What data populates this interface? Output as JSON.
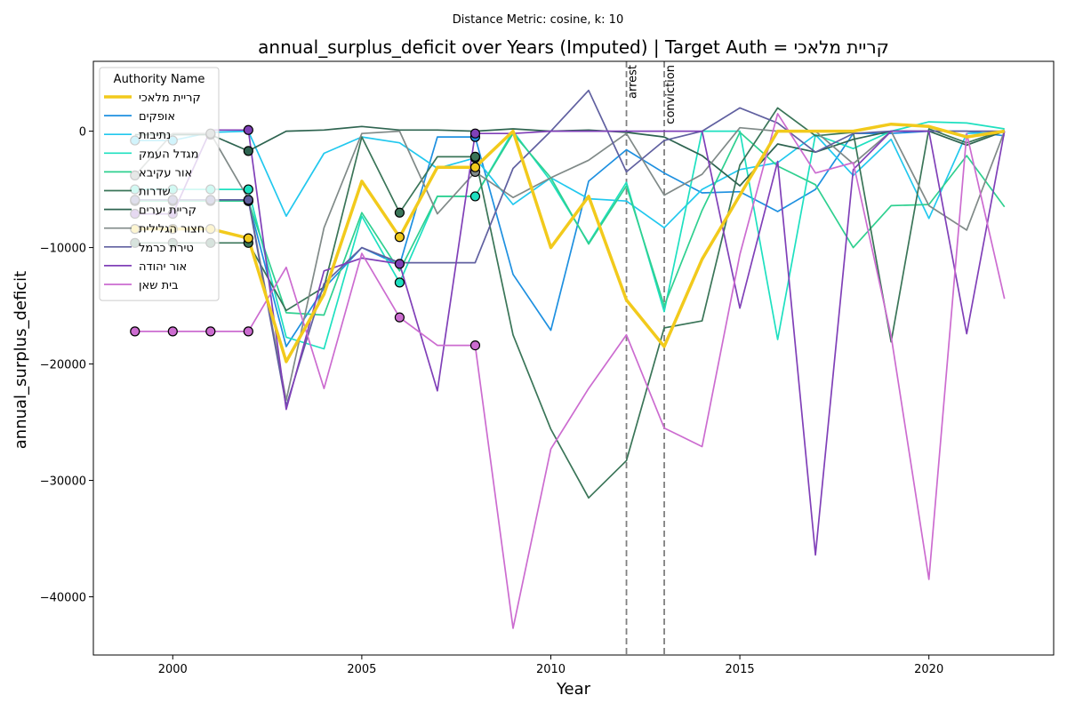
{
  "chart_data": {
    "type": "line",
    "suptitle": "Distance Metric: cosine, k: 10",
    "title": "annual_surplus_deficit over Years (Imputed) | Target Auth = קריית מלאכי",
    "xlabel": "Year",
    "ylabel": "annual_surplus_deficit",
    "xlim": [
      1997.9,
      2023.3
    ],
    "ylim": [
      -45000,
      6000
    ],
    "xticks": [
      2000,
      2005,
      2010,
      2015,
      2020
    ],
    "yticks": [
      -40000,
      -30000,
      -20000,
      -10000,
      0
    ],
    "ytick_labels": [
      "−40000",
      "−30000",
      "−20000",
      "−10000",
      "0"
    ],
    "grid": false,
    "legend_title": "Authority Name",
    "legend_position": "upper-left",
    "vertical_lines": [
      {
        "x": 2012,
        "label": "arrest"
      },
      {
        "x": 2013,
        "label": "conviction"
      }
    ],
    "x": [
      1999,
      2000,
      2001,
      2002,
      2003,
      2004,
      2005,
      2006,
      2007,
      2008,
      2009,
      2010,
      2011,
      2012,
      2013,
      2014,
      2015,
      2016,
      2017,
      2018,
      2019,
      2020,
      2021,
      2022
    ],
    "series": [
      {
        "name": "קריית מלאכי",
        "color": "#f2ca1c",
        "width": 3.5,
        "imputed": [
          1999,
          2000,
          2001,
          2002,
          2006,
          2008
        ],
        "values": [
          -8400,
          -8400,
          -8400,
          -9200,
          -19800,
          -14000,
          -4300,
          -9100,
          -3100,
          -3100,
          0,
          -10000,
          -5600,
          -14500,
          -18500,
          -11000,
          -5500,
          0,
          0,
          0,
          600,
          400,
          -500,
          0
        ]
      },
      {
        "name": "אופקים",
        "color": "#1e90e0",
        "width": 1.7,
        "imputed": [
          1999,
          2000,
          2001,
          2002,
          2008
        ],
        "values": [
          -6000,
          -6000,
          -6000,
          -6000,
          -18500,
          -13500,
          -10000,
          -11500,
          -500,
          -500,
          -12300,
          -17100,
          -4300,
          -1600,
          -3600,
          -5300,
          -5200,
          -6900,
          -5000,
          -200,
          -200,
          0,
          0,
          -400
        ]
      },
      {
        "name": "נתיבות",
        "color": "#22c8ee",
        "width": 1.7,
        "imputed": [
          1999,
          2000,
          2008
        ],
        "values": [
          -800,
          -800,
          -100,
          0,
          -7300,
          -1900,
          -500,
          -1000,
          -3200,
          -2300,
          -6300,
          -4000,
          -5800,
          -6000,
          -8300,
          -5000,
          -3300,
          -2700,
          -300,
          -3800,
          -700,
          -7500,
          -200,
          -100
        ]
      },
      {
        "name": "מגדל העמק",
        "color": "#1ee0c0",
        "width": 1.7,
        "imputed": [
          1999,
          2000,
          2001,
          2002,
          2006,
          2008
        ],
        "values": [
          -5000,
          -5000,
          -5000,
          -5000,
          -17700,
          -18700,
          -7300,
          -13000,
          -5600,
          -5600,
          0,
          -4300,
          -9600,
          -4400,
          -15500,
          0,
          0,
          -17900,
          -300,
          -1500,
          0,
          800,
          700,
          200
        ]
      },
      {
        "name": "אור עקיבא",
        "color": "#2fd090",
        "width": 1.7,
        "imputed": [
          2002
        ],
        "values": [
          -6000,
          -6000,
          -6000,
          -6000,
          -15600,
          -15800,
          -7000,
          -12000,
          -5600,
          -5600,
          -200,
          -4000,
          -9700,
          -4700,
          -15000,
          -6800,
          -100,
          -3000,
          -4600,
          -10000,
          -6400,
          -6300,
          -2100,
          -6500
        ]
      },
      {
        "name": "שדרות",
        "color": "#3a7558",
        "width": 1.7,
        "imputed": [
          1999,
          2000,
          2001,
          2002,
          2006,
          2008
        ],
        "values": [
          -9600,
          -9600,
          -9600,
          -9600,
          -15400,
          -13400,
          -500,
          -7000,
          -2200,
          -2200,
          -17500,
          -25600,
          -31500,
          -28300,
          -16900,
          -16300,
          -2900,
          2000,
          -400,
          -100,
          -18100,
          200,
          -1000,
          100
        ]
      },
      {
        "name": "קריית יערים",
        "color": "#2e6450",
        "width": 1.7,
        "imputed": [
          2001,
          2002
        ],
        "values": [
          -300,
          -300,
          -300,
          -1700,
          0,
          100,
          400,
          100,
          100,
          0,
          200,
          0,
          100,
          -100,
          -500,
          -2100,
          -4700,
          -1100,
          -1800,
          -700,
          0,
          0,
          -1200,
          0
        ]
      },
      {
        "name": "חצור הגלילית",
        "color": "#808a88",
        "width": 1.7,
        "imputed": [
          1999,
          2001,
          2008
        ],
        "values": [
          -3800,
          -200,
          -200,
          -5800,
          -23100,
          -8300,
          -200,
          0,
          -7100,
          -3500,
          -5700,
          -4000,
          -2500,
          -200,
          -5500,
          -3700,
          300,
          0,
          0,
          -2800,
          0,
          -6400,
          -8500,
          0
        ]
      },
      {
        "name": "טירת כרמל",
        "color": "#6060a0",
        "width": 1.7,
        "imputed": [
          1999,
          2000,
          2001,
          2002
        ],
        "values": [
          -5900,
          -5900,
          -5900,
          -5900,
          -23600,
          -13100,
          -10000,
          -11300,
          -11300,
          -11300,
          -3200,
          0,
          3500,
          -3500,
          -800,
          0,
          2000,
          700,
          -1800,
          -200,
          0,
          0,
          0,
          0
        ]
      },
      {
        "name": "אור יהודה",
        "color": "#8040b8",
        "width": 1.7,
        "imputed": [
          1999,
          2000,
          2002,
          2006,
          2008
        ],
        "values": [
          -7100,
          -7100,
          100,
          100,
          -23900,
          -12000,
          -10900,
          -11400,
          -22300,
          -200,
          -200,
          0,
          0,
          0,
          0,
          0,
          -15200,
          -2600,
          -36400,
          -3300,
          0,
          0,
          -17400,
          0
        ]
      },
      {
        "name": "בית שאן",
        "color": "#cc6cd0",
        "width": 1.7,
        "imputed": [
          1999,
          2000,
          2001,
          2002,
          2006,
          2008
        ],
        "values": [
          -17200,
          -17200,
          -17200,
          -17200,
          -11700,
          -22100,
          -10500,
          -16000,
          -18400,
          -18400,
          -42700,
          -27300,
          -22100,
          -17500,
          -25500,
          -27100,
          -10600,
          1500,
          -3600,
          -2700,
          -17600,
          -38500,
          -200,
          -14400
        ]
      }
    ]
  }
}
